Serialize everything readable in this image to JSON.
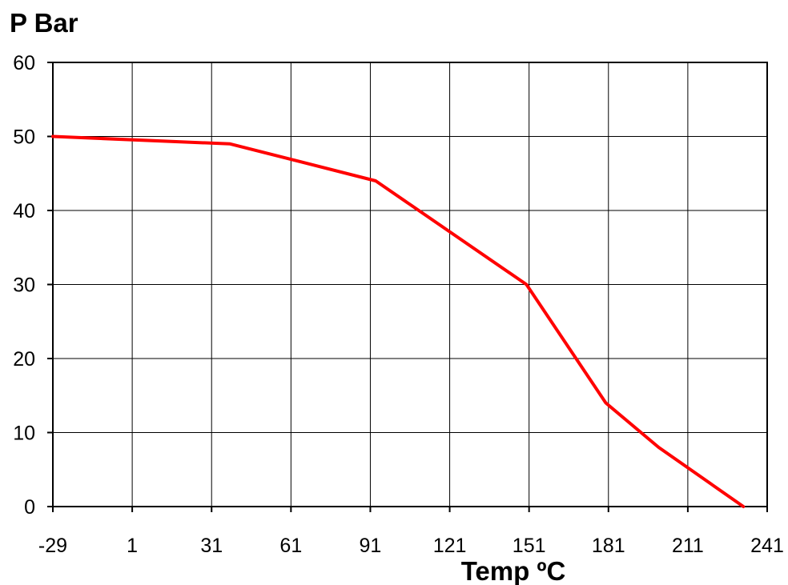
{
  "chart_data": {
    "type": "line",
    "title": "",
    "ylabel": "P Bar",
    "xlabel": "Temp ºC",
    "x_ticks": [
      "-29",
      "1",
      "31",
      "61",
      "91",
      "121",
      "151",
      "181",
      "211",
      "241"
    ],
    "y_ticks": [
      "0",
      "10",
      "20",
      "30",
      "40",
      "50",
      "60"
    ],
    "xlim": [
      -29,
      241
    ],
    "ylim": [
      0,
      60
    ],
    "grid": true,
    "legend": "none",
    "series": [
      {
        "color": "#ff0000",
        "x": [
          -29,
          38,
          93,
          150,
          180,
          200,
          232
        ],
        "y": [
          50,
          49,
          44,
          30,
          14,
          8,
          0
        ]
      }
    ]
  }
}
